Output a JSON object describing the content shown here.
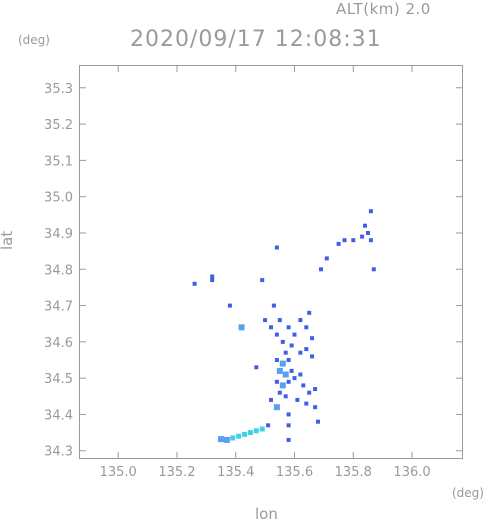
{
  "header": {
    "altitude_label": "ALT(km)  2.0",
    "timestamp": "2020/09/17 12:08:31"
  },
  "chart_data": {
    "type": "heatmap",
    "title": "2020/09/17 12:08:31",
    "subtitle": "ALT(km)  2.0",
    "xlabel": "lon",
    "ylabel": "lat",
    "x_unit": "(deg)",
    "y_unit": "(deg)",
    "xlim": [
      134.87,
      136.17
    ],
    "ylim": [
      34.28,
      35.36
    ],
    "xticks": [
      "135.0",
      "135.2",
      "135.4",
      "135.6",
      "135.8",
      "136.0"
    ],
    "yticks": [
      "34.3",
      "34.4",
      "34.5",
      "34.6",
      "34.7",
      "34.8",
      "34.9",
      "35.0",
      "35.1",
      "35.2",
      "35.3"
    ],
    "grid": false,
    "colors": {
      "weak": "#3f5fe8",
      "moderate": "#5aa0f0",
      "strong": "#40d0e8",
      "axis": "#9a9a9a"
    },
    "echoes": [
      {
        "lon": 135.86,
        "lat": 34.96,
        "level": "weak"
      },
      {
        "lon": 135.84,
        "lat": 34.92,
        "level": "weak"
      },
      {
        "lon": 135.85,
        "lat": 34.9,
        "level": "weak"
      },
      {
        "lon": 135.86,
        "lat": 34.88,
        "level": "weak"
      },
      {
        "lon": 135.83,
        "lat": 34.89,
        "level": "weak"
      },
      {
        "lon": 135.8,
        "lat": 34.88,
        "level": "weak"
      },
      {
        "lon": 135.77,
        "lat": 34.88,
        "level": "weak"
      },
      {
        "lon": 135.75,
        "lat": 34.87,
        "level": "weak"
      },
      {
        "lon": 135.87,
        "lat": 34.8,
        "level": "weak"
      },
      {
        "lon": 135.71,
        "lat": 34.83,
        "level": "weak"
      },
      {
        "lon": 135.69,
        "lat": 34.8,
        "level": "weak"
      },
      {
        "lon": 135.54,
        "lat": 34.86,
        "level": "weak"
      },
      {
        "lon": 135.32,
        "lat": 34.78,
        "level": "weak"
      },
      {
        "lon": 135.32,
        "lat": 34.77,
        "level": "weak"
      },
      {
        "lon": 135.26,
        "lat": 34.76,
        "level": "weak"
      },
      {
        "lon": 135.49,
        "lat": 34.77,
        "level": "weak"
      },
      {
        "lon": 135.38,
        "lat": 34.7,
        "level": "weak"
      },
      {
        "lon": 135.53,
        "lat": 34.7,
        "level": "weak"
      },
      {
        "lon": 135.42,
        "lat": 34.64,
        "level": "moderate"
      },
      {
        "lon": 135.5,
        "lat": 34.66,
        "level": "weak"
      },
      {
        "lon": 135.52,
        "lat": 34.64,
        "level": "weak"
      },
      {
        "lon": 135.54,
        "lat": 34.62,
        "level": "weak"
      },
      {
        "lon": 135.55,
        "lat": 34.66,
        "level": "weak"
      },
      {
        "lon": 135.58,
        "lat": 34.64,
        "level": "weak"
      },
      {
        "lon": 135.6,
        "lat": 34.62,
        "level": "weak"
      },
      {
        "lon": 135.62,
        "lat": 34.66,
        "level": "weak"
      },
      {
        "lon": 135.64,
        "lat": 34.64,
        "level": "weak"
      },
      {
        "lon": 135.65,
        "lat": 34.68,
        "level": "weak"
      },
      {
        "lon": 135.66,
        "lat": 34.61,
        "level": "weak"
      },
      {
        "lon": 135.64,
        "lat": 34.58,
        "level": "weak"
      },
      {
        "lon": 135.62,
        "lat": 34.57,
        "level": "weak"
      },
      {
        "lon": 135.66,
        "lat": 34.56,
        "level": "weak"
      },
      {
        "lon": 135.56,
        "lat": 34.6,
        "level": "weak"
      },
      {
        "lon": 135.57,
        "lat": 34.57,
        "level": "weak"
      },
      {
        "lon": 135.59,
        "lat": 34.59,
        "level": "weak"
      },
      {
        "lon": 135.54,
        "lat": 34.55,
        "level": "weak"
      },
      {
        "lon": 135.56,
        "lat": 34.54,
        "level": "moderate"
      },
      {
        "lon": 135.58,
        "lat": 34.55,
        "level": "weak"
      },
      {
        "lon": 135.55,
        "lat": 34.52,
        "level": "moderate"
      },
      {
        "lon": 135.57,
        "lat": 34.51,
        "level": "moderate"
      },
      {
        "lon": 135.59,
        "lat": 34.52,
        "level": "weak"
      },
      {
        "lon": 135.54,
        "lat": 34.49,
        "level": "weak"
      },
      {
        "lon": 135.56,
        "lat": 34.48,
        "level": "moderate"
      },
      {
        "lon": 135.58,
        "lat": 34.49,
        "level": "weak"
      },
      {
        "lon": 135.6,
        "lat": 34.5,
        "level": "weak"
      },
      {
        "lon": 135.55,
        "lat": 34.46,
        "level": "weak"
      },
      {
        "lon": 135.57,
        "lat": 34.45,
        "level": "weak"
      },
      {
        "lon": 135.62,
        "lat": 34.51,
        "level": "weak"
      },
      {
        "lon": 135.63,
        "lat": 34.48,
        "level": "weak"
      },
      {
        "lon": 135.65,
        "lat": 34.46,
        "level": "weak"
      },
      {
        "lon": 135.67,
        "lat": 34.47,
        "level": "weak"
      },
      {
        "lon": 135.64,
        "lat": 34.43,
        "level": "weak"
      },
      {
        "lon": 135.67,
        "lat": 34.42,
        "level": "weak"
      },
      {
        "lon": 135.61,
        "lat": 34.44,
        "level": "weak"
      },
      {
        "lon": 135.54,
        "lat": 34.42,
        "level": "moderate"
      },
      {
        "lon": 135.58,
        "lat": 34.4,
        "level": "weak"
      },
      {
        "lon": 135.52,
        "lat": 34.44,
        "level": "weak"
      },
      {
        "lon": 135.68,
        "lat": 34.38,
        "level": "weak"
      },
      {
        "lon": 135.47,
        "lat": 34.53,
        "level": "weak"
      },
      {
        "lon": 135.51,
        "lat": 34.37,
        "level": "weak"
      },
      {
        "lon": 135.49,
        "lat": 34.36,
        "level": "strong"
      },
      {
        "lon": 135.47,
        "lat": 34.355,
        "level": "strong"
      },
      {
        "lon": 135.45,
        "lat": 34.35,
        "level": "strong"
      },
      {
        "lon": 135.43,
        "lat": 34.345,
        "level": "strong"
      },
      {
        "lon": 135.41,
        "lat": 34.34,
        "level": "strong"
      },
      {
        "lon": 135.39,
        "lat": 34.335,
        "level": "strong"
      },
      {
        "lon": 135.37,
        "lat": 34.33,
        "level": "moderate"
      },
      {
        "lon": 135.35,
        "lat": 34.332,
        "level": "moderate"
      },
      {
        "lon": 135.58,
        "lat": 34.37,
        "level": "weak"
      },
      {
        "lon": 135.58,
        "lat": 34.33,
        "level": "weak"
      }
    ]
  }
}
